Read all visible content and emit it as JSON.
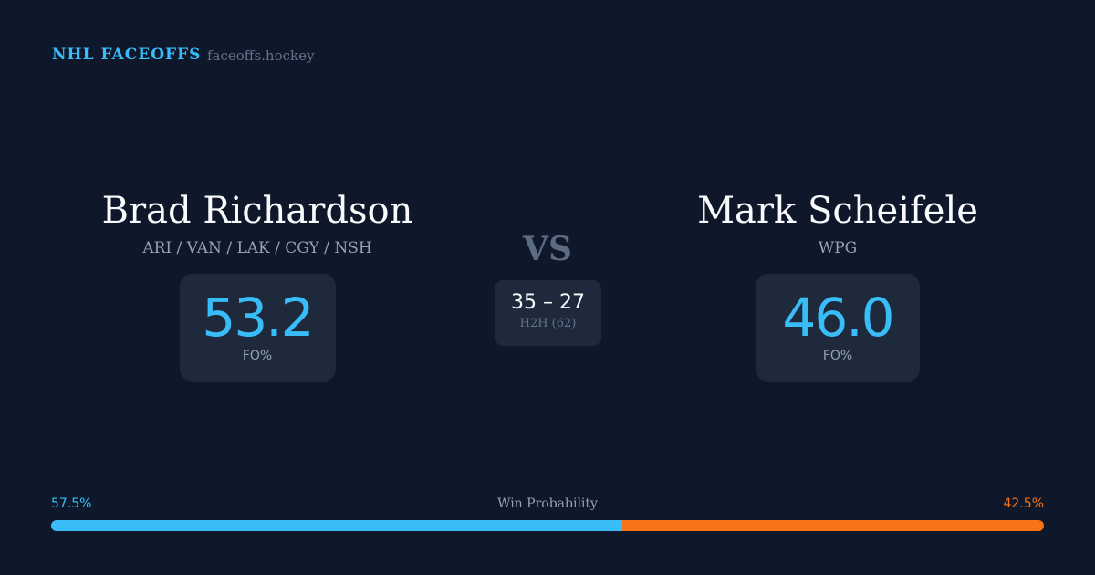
{
  "header": {
    "brand": "NHL FACEOFFS",
    "site": "faceoffs.hockey"
  },
  "left": {
    "name": "Brad Richardson",
    "teams": "ARI / VAN / LAK / CGY / NSH",
    "fo_pct": "53.2",
    "fo_label": "FO%"
  },
  "right": {
    "name": "Mark Scheifele",
    "teams": "WPG",
    "fo_pct": "46.0",
    "fo_label": "FO%"
  },
  "vs": "VS",
  "h2h": {
    "score": "35 – 27",
    "label": "H2H (62)"
  },
  "win_probability": {
    "label": "Win Probability",
    "left": "57.5%",
    "right": "42.5%",
    "left_value": 57.5,
    "right_value": 42.5,
    "left_color": "#38bdf8",
    "right_color": "#f97316"
  }
}
